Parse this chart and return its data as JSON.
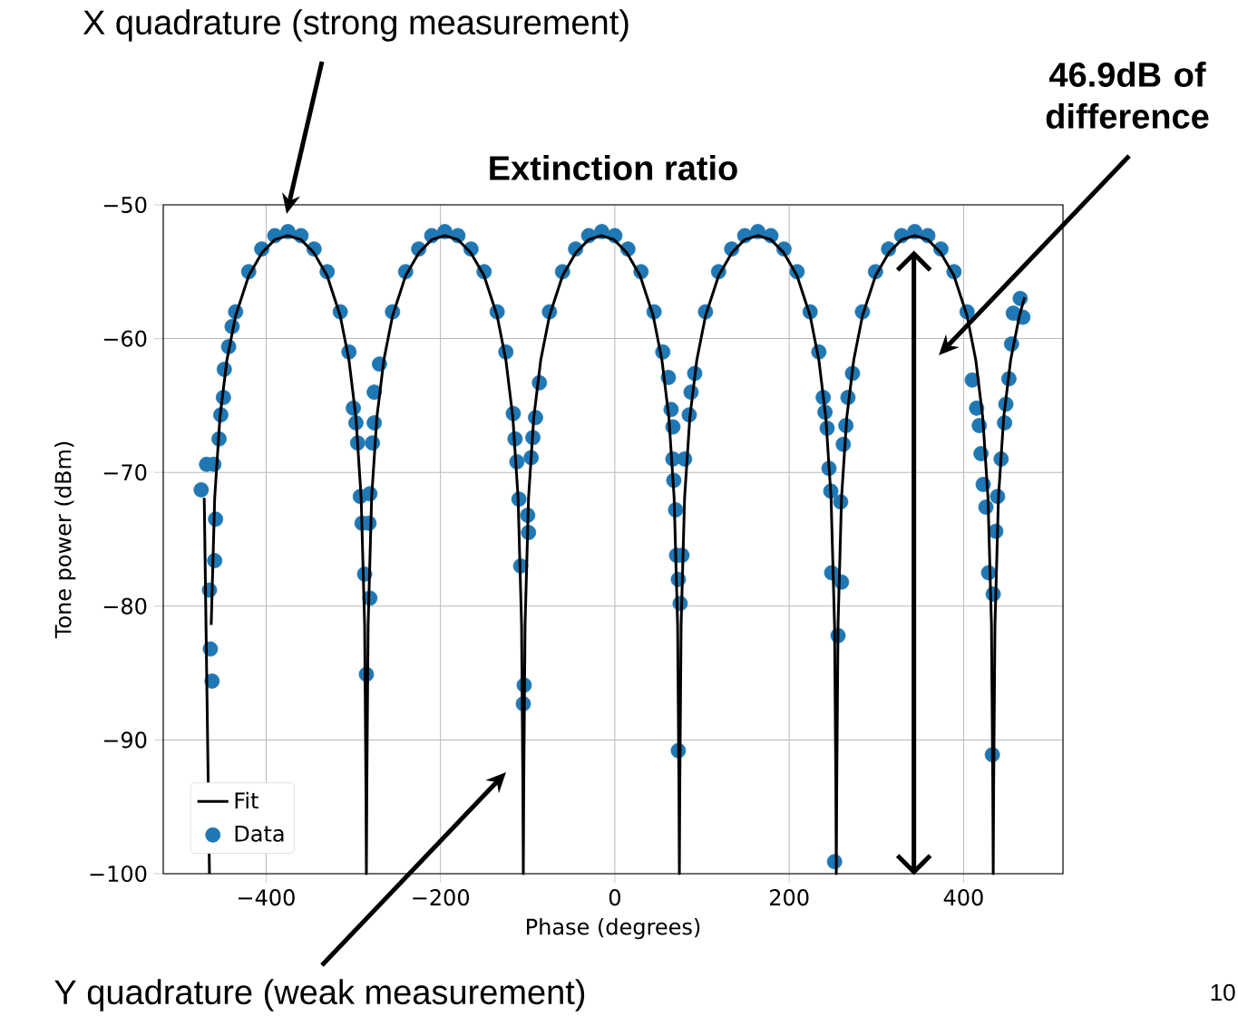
{
  "chart_data": {
    "type": "scatter",
    "title": "Extinction ratio",
    "xlabel": "Phase (degrees)",
    "ylabel": "Tone power (dBm)",
    "xlim": [
      -518,
      514
    ],
    "ylim": [
      -100,
      -50
    ],
    "xticks": [
      {
        "value": -400,
        "label": "−400"
      },
      {
        "value": -200,
        "label": "−200"
      },
      0,
      200,
      400
    ],
    "yticks": [
      {
        "value": -50,
        "label": "−50"
      },
      {
        "value": -60,
        "label": "−60"
      },
      {
        "value": -70,
        "label": "−70"
      },
      {
        "value": -80,
        "label": "−80"
      },
      {
        "value": -90,
        "label": "−90"
      },
      {
        "value": -100,
        "label": "−100"
      }
    ],
    "grid": true,
    "legend": "bottom left",
    "series": [
      {
        "name": "Fit",
        "type": "line",
        "color": "#000000",
        "marker": "none",
        "x": [
          -471,
          -465,
          -464.5,
          -463,
          -459,
          -453,
          -445,
          -435,
          -420,
          -405,
          -390,
          -375,
          -360,
          -345,
          -330,
          -315,
          -305,
          -297,
          -291,
          -287,
          -285.5,
          -285,
          -284.5,
          -283,
          -279,
          -273,
          -265,
          -255,
          -240,
          -225,
          -210,
          -195,
          -180,
          -165,
          -150,
          -135,
          -125,
          -117,
          -111,
          -107,
          -105.5,
          -105,
          -104.5,
          -103,
          -99,
          -93,
          -85,
          -75,
          -60,
          -45,
          -30,
          -15.5,
          -1,
          14,
          29,
          44,
          54,
          62,
          68,
          72,
          73.5,
          74,
          74.5,
          76,
          80,
          86,
          94,
          104,
          119,
          134,
          149,
          164,
          179,
          194,
          209,
          224,
          234,
          242,
          248,
          252,
          253.5,
          254,
          254.5,
          256,
          260,
          266,
          274,
          284,
          299,
          314,
          329,
          344,
          359,
          374,
          389,
          404,
          414,
          422,
          428,
          432,
          433.5,
          434,
          434.5,
          436,
          440,
          446,
          454,
          464,
          470
        ],
        "values": [
          -71.9,
          -100,
          null,
          -81.4,
          -71.9,
          -65.9,
          -61.6,
          -58.3,
          -55.3,
          -53.6,
          -52.6,
          -52.3,
          -52.6,
          -53.6,
          -55.3,
          -58.3,
          -61.6,
          -65.9,
          -71.9,
          -81.4,
          -93.5,
          -100,
          -93.5,
          -81.4,
          -71.9,
          -65.9,
          -61.6,
          -58.3,
          -55.3,
          -53.6,
          -52.6,
          -52.3,
          -52.6,
          -53.6,
          -55.3,
          -58.3,
          -61.6,
          -65.9,
          -71.9,
          -81.4,
          -93.5,
          -100,
          -93.5,
          -81.4,
          -71.9,
          -65.9,
          -61.6,
          -58.3,
          -55.3,
          -53.6,
          -52.6,
          -52.3,
          -52.6,
          -53.6,
          -55.3,
          -58.3,
          -61.6,
          -65.9,
          -71.9,
          -81.4,
          -93.5,
          -100,
          -93.5,
          -81.4,
          -71.9,
          -65.9,
          -61.6,
          -58.3,
          -55.3,
          -53.6,
          -52.6,
          -52.3,
          -52.6,
          -53.6,
          -55.3,
          -58.3,
          -61.6,
          -65.9,
          -71.9,
          -81.4,
          -93.5,
          -100,
          -93.5,
          -81.4,
          -71.9,
          -65.9,
          -61.6,
          -58.3,
          -55.3,
          -53.6,
          -52.6,
          -52.3,
          -52.6,
          -53.6,
          -55.3,
          -58.3,
          -61.6,
          -65.9,
          -71.9,
          -81.4,
          -93.5,
          -100,
          -93.5,
          -81.4,
          -71.9,
          -65.9,
          -61.6,
          -58.3,
          -56.9
        ]
      },
      {
        "name": "Data",
        "type": "scatter",
        "color": "#1f77b4",
        "marker": "circle",
        "x": [
          -474.5,
          -468.3,
          -465,
          -464,
          -462,
          -460,
          -459,
          -458,
          -454,
          -452,
          -449,
          -448,
          -443,
          -439,
          -435,
          -420,
          -405,
          -390,
          -375,
          -360,
          -345,
          -330,
          -315,
          -305,
          -300,
          -297,
          -295,
          -292,
          -290,
          -287,
          -285,
          -282,
          -281,
          -281,
          -278,
          -276,
          -276,
          -270,
          -255,
          -240,
          -225,
          -210,
          -195,
          -180,
          -165,
          -150,
          -135,
          -125,
          -116.5,
          -114.5,
          -112.4,
          -110,
          -108,
          -105,
          -104,
          -100,
          -99,
          -96,
          -94,
          -91,
          -86.5,
          -75,
          -60,
          -45,
          -30,
          -15,
          0,
          15,
          30,
          45,
          55,
          61.4,
          64.5,
          66.6,
          66.6,
          67.6,
          69.7,
          70.8,
          72.8,
          72.8,
          74.9,
          77,
          80,
          85.3,
          87.4,
          91.6,
          104,
          119,
          134,
          149,
          164,
          179,
          194,
          209,
          224,
          234,
          239,
          241,
          243.5,
          245.6,
          247.7,
          248.7,
          252,
          256,
          259,
          260,
          262,
          265,
          267.4,
          272.6,
          284,
          299,
          314,
          329,
          344,
          359,
          374,
          389,
          404,
          410,
          415,
          418,
          420,
          422.5,
          425.6,
          428.7,
          433,
          434,
          437,
          439,
          443,
          447,
          448.5,
          452,
          455,
          457,
          465,
          468
        ],
        "values": [
          -71.3,
          -69.4,
          -78.8,
          -83.2,
          -85.6,
          -69.4,
          -76.6,
          -73.5,
          -67.5,
          -65.7,
          -64.4,
          -62.3,
          -60.6,
          -59.1,
          -58.0,
          -55.0,
          -53.3,
          -52.3,
          -52.0,
          -52.3,
          -53.3,
          -55.0,
          -58.0,
          -61.0,
          -65.2,
          -66.3,
          -67.8,
          -71.8,
          -73.8,
          -77.6,
          -85.1,
          -73.8,
          -71.6,
          -79.4,
          -67.8,
          -66.3,
          -64.0,
          -61.9,
          -58.0,
          -55.0,
          -53.3,
          -52.3,
          -52.0,
          -52.3,
          -53.3,
          -55.0,
          -58.0,
          -61.0,
          -65.6,
          -67.5,
          -69.2,
          -72.0,
          -77.0,
          -87.3,
          -85.9,
          -73.2,
          -74.5,
          -68.9,
          -67.4,
          -65.9,
          -63.3,
          -58.0,
          -55.0,
          -53.3,
          -52.3,
          -52.0,
          -52.3,
          -53.3,
          -55.0,
          -58.0,
          -61.0,
          -62.9,
          -65.3,
          -66.6,
          -69.0,
          -70.6,
          -72.8,
          -76.2,
          -78.0,
          -90.8,
          -79.8,
          -76.2,
          -69.0,
          -65.7,
          -64.0,
          -62.6,
          -58.0,
          -55.0,
          -53.3,
          -52.3,
          -52.0,
          -52.3,
          -53.3,
          -55.0,
          -58.0,
          -61.0,
          -64.4,
          -65.5,
          -66.7,
          -69.7,
          -71.4,
          -77.5,
          -99.1,
          -82.2,
          -72.2,
          -78.2,
          -67.9,
          -66.5,
          -64.4,
          -62.6,
          -58.0,
          -55.0,
          -53.3,
          -52.3,
          -52.0,
          -52.3,
          -53.3,
          -55.0,
          -58.0,
          -63.1,
          -65.2,
          -66.5,
          -68.6,
          -70.9,
          -72.6,
          -77.5,
          -91.1,
          -79.1,
          -74.4,
          -71.8,
          -69.0,
          -66.3,
          -64.9,
          -63.0,
          -60.4,
          -58.1,
          -57.0,
          -58.4
        ]
      }
    ],
    "ref_lines": [
      {
        "axis": "x",
        "value": 343,
        "color": "#000000"
      }
    ],
    "annotations": [
      "X quadrature (strong measurement)",
      "Y quadrature (weak measurement)",
      "46.9dB of difference",
      "10"
    ]
  }
}
